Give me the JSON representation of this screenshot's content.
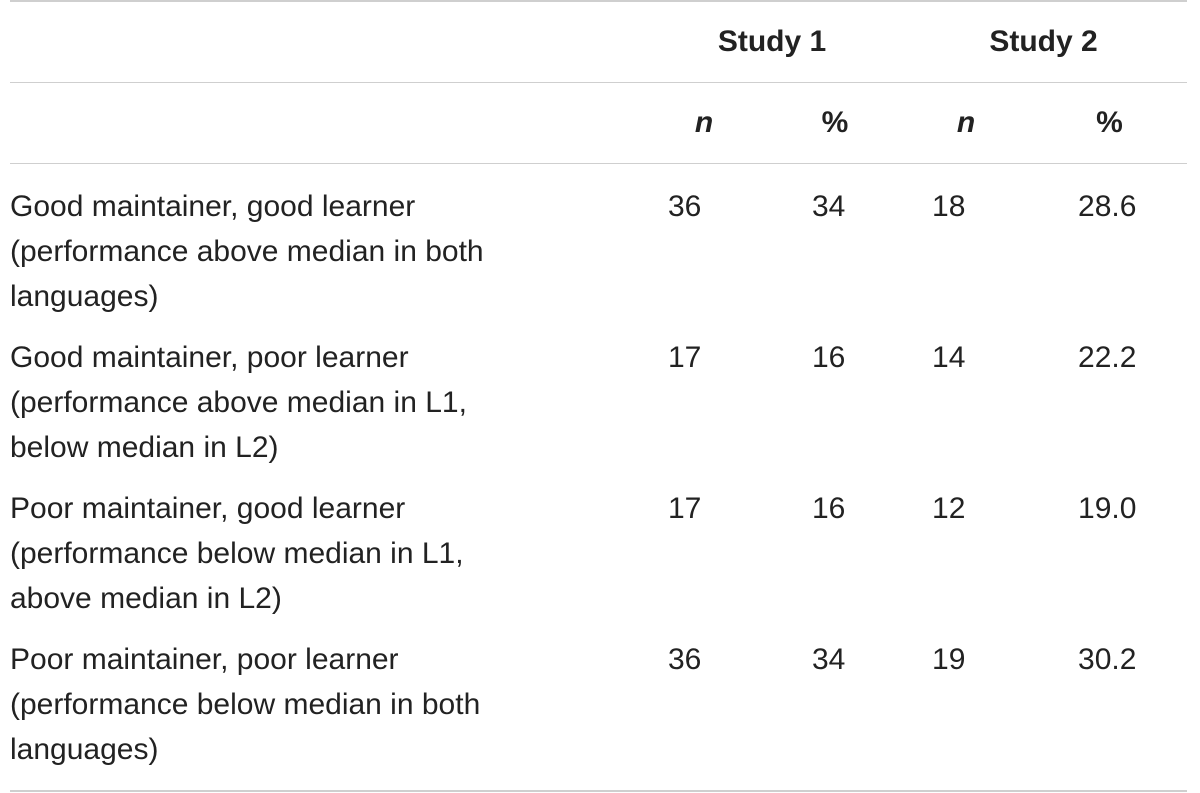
{
  "table": {
    "group_headers": [
      "Study 1",
      "Study 2"
    ],
    "sub_headers": [
      "n",
      "%",
      "n",
      "%"
    ],
    "rows": [
      {
        "label_lines": [
          "Good maintainer, good learner",
          "(performance above median in both",
          "languages)"
        ],
        "study1_n": "36",
        "study1_pct": "34",
        "study2_n": "18",
        "study2_pct": "28.6"
      },
      {
        "label_lines": [
          "Good maintainer, poor learner",
          "(performance above median in L1,",
          "below median in L2)"
        ],
        "study1_n": "17",
        "study1_pct": "16",
        "study2_n": "14",
        "study2_pct": "22.2"
      },
      {
        "label_lines": [
          "Poor maintainer, good learner",
          "(performance below median in L1,",
          "above median in L2)"
        ],
        "study1_n": "17",
        "study1_pct": "16",
        "study2_n": "12",
        "study2_pct": "19.0"
      },
      {
        "label_lines": [
          "Poor maintainer, poor learner",
          "(performance below median in both",
          "languages)"
        ],
        "study1_n": "36",
        "study1_pct": "34",
        "study2_n": "19",
        "study2_pct": "30.2"
      }
    ]
  }
}
